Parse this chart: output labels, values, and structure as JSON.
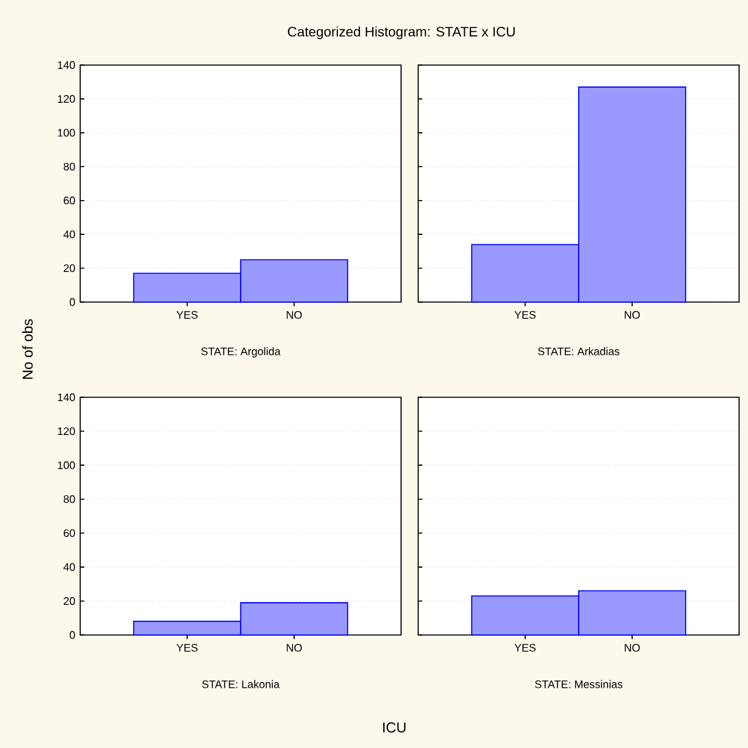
{
  "chart_data": [
    {
      "type": "bar",
      "title": "Categorized Histogram: STATE x ICU",
      "annotations": [
        "No of obs",
        "ICU"
      ],
      "xlabel": "STATE: Argolida",
      "categories": [
        "YES",
        "NO"
      ],
      "values": [
        17,
        25
      ],
      "color": "#0000ff",
      "ylim": [
        0,
        140
      ],
      "yticks": [
        0,
        20,
        40,
        60,
        80,
        100,
        120,
        140
      ],
      "grid": "y"
    },
    {
      "type": "bar",
      "xlabel": "STATE: Arkadias",
      "categories": [
        "YES",
        "NO"
      ],
      "values": [
        34,
        127
      ],
      "color": "#0000ff",
      "ylim": [
        0,
        140
      ],
      "yticks": [
        0,
        20,
        40,
        60,
        80,
        100,
        120,
        140
      ],
      "grid": "y",
      "tick_labels": "x"
    },
    {
      "type": "bar",
      "xlabel": "STATE: Lakonia",
      "categories": [
        "YES",
        "NO"
      ],
      "values": [
        8,
        19
      ],
      "color": "#0000ff",
      "ylim": [
        0,
        140
      ],
      "yticks": [
        0,
        20,
        40,
        60,
        80,
        100,
        120,
        140
      ],
      "grid": "y"
    },
    {
      "type": "bar",
      "xlabel": "STATE: Messinias",
      "categories": [
        "YES",
        "NO"
      ],
      "values": [
        23,
        26
      ],
      "color": "#0000ff",
      "ylim": [
        0,
        140
      ],
      "yticks": [
        0,
        20,
        40,
        60,
        80,
        100,
        120,
        140
      ],
      "grid": "y",
      "tick_labels": "x"
    }
  ]
}
